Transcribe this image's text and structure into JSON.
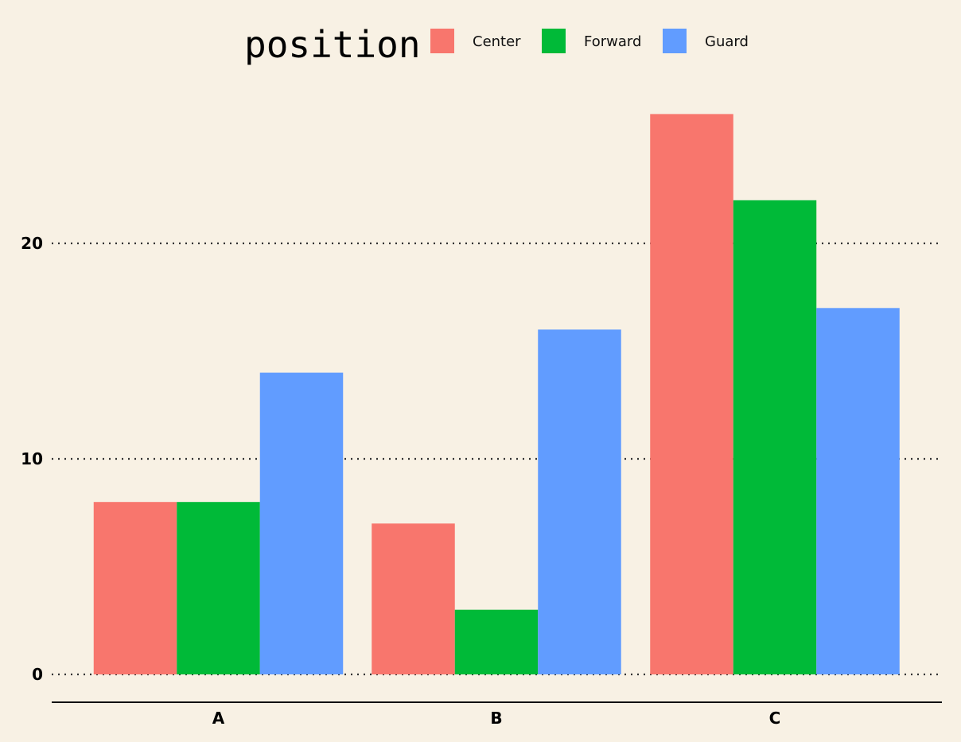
{
  "chart_data": {
    "type": "bar",
    "legend_title": "position",
    "legend_position": "top",
    "categories": [
      "A",
      "B",
      "C"
    ],
    "series": [
      {
        "name": "Center",
        "color": "#F8766D",
        "values": [
          8,
          7,
          26
        ]
      },
      {
        "name": "Forward",
        "color": "#00BA38",
        "values": [
          8,
          3,
          22
        ]
      },
      {
        "name": "Guard",
        "color": "#619CFF",
        "values": [
          14,
          16,
          17
        ]
      }
    ],
    "y_ticks": [
      0,
      10,
      20
    ],
    "ylim": [
      0,
      26
    ],
    "grid": "horizontal-dotted",
    "background": "#F8F1E4"
  }
}
